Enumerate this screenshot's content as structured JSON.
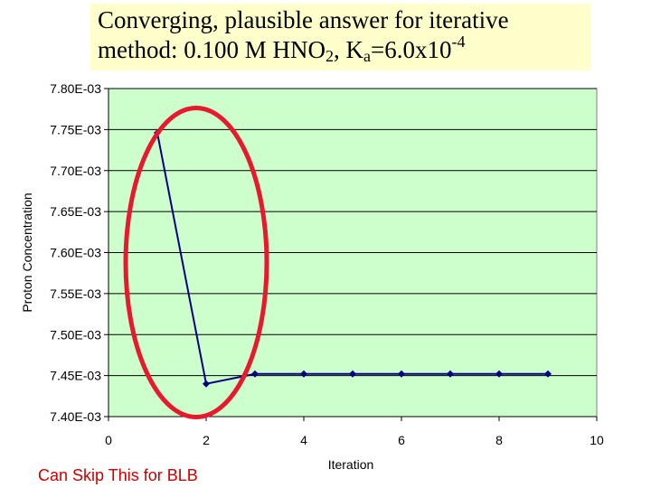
{
  "slide": {
    "title_line1": "Converging, plausible answer for iterative",
    "title_line2_pre": "method:  0.100 M HNO",
    "title_sub_2": "2",
    "title_line2_mid": ", K",
    "title_sub_a": "a",
    "title_line2_post": "=6.0x10",
    "title_sup": "-4",
    "footnote": "Can Skip This for BLB",
    "title_bg_color": "#ffffcc",
    "footnote_color": "#cc0000"
  },
  "chart_data": {
    "type": "line",
    "title": "",
    "xlabel": "Iteration",
    "ylabel": "Proton Concentration",
    "xlim": [
      0,
      10
    ],
    "ylim": [
      0.0074,
      0.0078
    ],
    "x_ticks": [
      0,
      2,
      4,
      6,
      8,
      10
    ],
    "x_tick_labels": [
      "0",
      "2",
      "4",
      "6",
      "8",
      "10"
    ],
    "y_ticks": [
      0.0074,
      0.00745,
      0.0075,
      0.00755,
      0.0076,
      0.00765,
      0.0077,
      0.00775,
      0.0078
    ],
    "y_tick_labels": [
      "7.40E-03",
      "7.45E-03",
      "7.50E-03",
      "7.55E-03",
      "7.60E-03",
      "7.65E-03",
      "7.70E-03",
      "7.75E-03",
      "7.80E-03"
    ],
    "grid": "horizontal",
    "plot_background": "#ccffcc",
    "series": [
      {
        "x": [
          1,
          2,
          3,
          4,
          5,
          6,
          7,
          8,
          9
        ],
        "y": [
          0.007746,
          0.00744,
          0.007452,
          0.007452,
          0.007452,
          0.007452,
          0.007452,
          0.007452,
          0.007452
        ],
        "color": "#000080"
      }
    ],
    "annotation": {
      "shape": "ellipse",
      "color": "#e8192c",
      "around_x": [
        1,
        3
      ]
    }
  }
}
